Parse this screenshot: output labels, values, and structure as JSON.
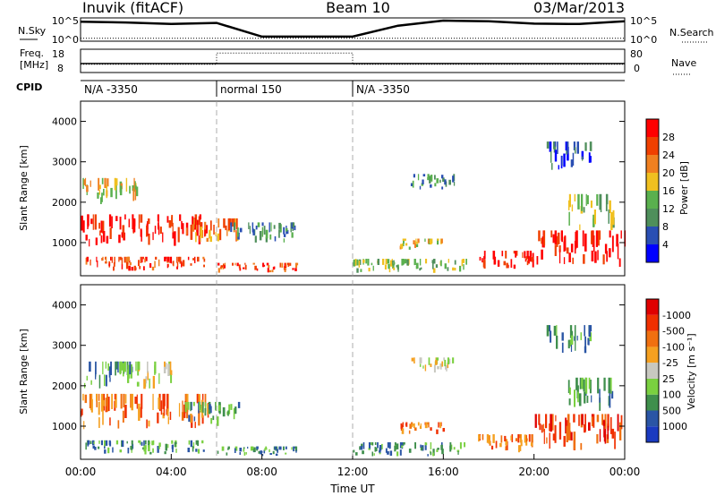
{
  "header": {
    "station": "Inuvik (fitACF)",
    "beam": "Beam 10",
    "date": "03/Mar/2013"
  },
  "colors": {
    "power": [
      "#0000ff",
      "#2a4fb3",
      "#4f8f5b",
      "#5ab04e",
      "#f0c020",
      "#f08020",
      "#f04000",
      "#ff0000"
    ],
    "velocity": [
      "#e00000",
      "#f03000",
      "#f07010",
      "#f5a020",
      "#c8c8c0",
      "#7ad040",
      "#3f8f4c",
      "#2a55a5",
      "#1a3ac0"
    ]
  },
  "chart_data": [
    {
      "type": "line",
      "panel": "noise",
      "left_label": "N.Sky",
      "right_label": "N.Search",
      "left_ticks": [
        "10^5",
        "10^0"
      ],
      "right_ticks": [
        "10^5",
        "10^0"
      ],
      "x": [
        0,
        2,
        4,
        6,
        8,
        10,
        12,
        14,
        16,
        18,
        20,
        22,
        24
      ],
      "series": [
        {
          "name": "N.Sky",
          "values": [
            30000,
            20000,
            8000,
            15000,
            5,
            5,
            5,
            3000,
            60000,
            40000,
            10000,
            8000,
            40000
          ]
        },
        {
          "name": "N.Search",
          "values": [
            2,
            2,
            2,
            2,
            2,
            2,
            2,
            2,
            2,
            2,
            2,
            2,
            2
          ]
        }
      ]
    },
    {
      "type": "line",
      "panel": "frequency",
      "left_label_1": "Freq.",
      "left_label_2": "[MHz]",
      "right_label": "Nave",
      "left_ticks": [
        "18",
        "8"
      ],
      "right_ticks": [
        "80",
        "0"
      ],
      "x": [
        0,
        6,
        6,
        12,
        12,
        24
      ],
      "series": [
        {
          "name": "Freq.",
          "values": [
            11.5,
            11.5,
            11.5,
            11.5,
            11.5,
            11.5
          ]
        },
        {
          "name": "Nave",
          "values": [
            25,
            25,
            75,
            75,
            25,
            25
          ]
        }
      ]
    },
    {
      "type": "table",
      "panel": "cpid",
      "label": "CPID",
      "segments": [
        {
          "start": 0,
          "end": 6,
          "name": "N/A -3350"
        },
        {
          "start": 6,
          "end": 12,
          "name": "normal 150"
        },
        {
          "start": 12,
          "end": 24,
          "name": "N/A -3350"
        }
      ]
    },
    {
      "type": "heatmap",
      "panel": "power",
      "ylabel": "Slant Range [km]",
      "xlabel": "",
      "xlim": [
        0,
        24
      ],
      "ylim": [
        180,
        4500
      ],
      "yticks": [
        "1000",
        "2000",
        "3000",
        "4000"
      ],
      "colorbar_label": "Power [dB]",
      "colorbar_ticks": [
        "4",
        "8",
        "12",
        "16",
        "20",
        "24",
        "28"
      ],
      "regions": [
        {
          "t0": 0.0,
          "t1": 5.6,
          "r0": 900,
          "r1": 1700,
          "level": 28
        },
        {
          "t0": 0.0,
          "t1": 2.5,
          "r0": 1900,
          "r1": 2600,
          "level": 16
        },
        {
          "t0": 0.2,
          "t1": 5.5,
          "r0": 300,
          "r1": 650,
          "level": 24
        },
        {
          "t0": 4.5,
          "t1": 7.0,
          "r0": 1000,
          "r1": 1600,
          "level": 20
        },
        {
          "t0": 6.0,
          "t1": 9.5,
          "r0": 250,
          "r1": 500,
          "level": 24
        },
        {
          "t0": 6.5,
          "t1": 9.5,
          "r0": 1000,
          "r1": 1500,
          "level": 8
        },
        {
          "t0": 12.0,
          "t1": 17.0,
          "r0": 250,
          "r1": 600,
          "level": 12
        },
        {
          "t0": 14.5,
          "t1": 16.5,
          "r0": 2300,
          "r1": 2700,
          "level": 8
        },
        {
          "t0": 14.0,
          "t1": 16.0,
          "r0": 800,
          "r1": 1100,
          "level": 16
        },
        {
          "t0": 17.5,
          "t1": 20.0,
          "r0": 350,
          "r1": 800,
          "level": 28
        },
        {
          "t0": 20.0,
          "t1": 24.0,
          "r0": 400,
          "r1": 1300,
          "level": 28
        },
        {
          "t0": 21.5,
          "t1": 23.5,
          "r0": 1300,
          "r1": 2200,
          "level": 12
        },
        {
          "t0": 20.5,
          "t1": 22.5,
          "r0": 2800,
          "r1": 3500,
          "level": 4
        }
      ]
    },
    {
      "type": "heatmap",
      "panel": "velocity",
      "ylabel": "Slant Range [km]",
      "xlabel": "Time UT",
      "xlim": [
        0,
        24
      ],
      "ylim": [
        180,
        4500
      ],
      "yticks": [
        "1000",
        "2000",
        "3000",
        "4000"
      ],
      "xticks": [
        "00:00",
        "04:00",
        "08:00",
        "12:00",
        "16:00",
        "20:00",
        "00:00"
      ],
      "colorbar_label": "Velocity [m s⁻¹]",
      "colorbar_ticks": [
        "1000",
        "500",
        "100",
        "25",
        "-25",
        "-100",
        "-500",
        "-1000"
      ],
      "regions": [
        {
          "t0": 0.0,
          "t1": 5.6,
          "r0": 900,
          "r1": 1800,
          "level": -100
        },
        {
          "t0": 0.0,
          "t1": 2.5,
          "r0": 1900,
          "r1": 2600,
          "level": 100
        },
        {
          "t0": 2.5,
          "t1": 4.0,
          "r0": 1900,
          "r1": 2600,
          "level": 0
        },
        {
          "t0": 0.2,
          "t1": 5.5,
          "r0": 300,
          "r1": 650,
          "level": 100
        },
        {
          "t0": 4.5,
          "t1": 7.0,
          "r0": 1000,
          "r1": 1600,
          "level": 100
        },
        {
          "t0": 6.0,
          "t1": 9.5,
          "r0": 250,
          "r1": 500,
          "level": 100
        },
        {
          "t0": 12.0,
          "t1": 17.0,
          "r0": 250,
          "r1": 600,
          "level": 100
        },
        {
          "t0": 14.5,
          "t1": 16.5,
          "r0": 2300,
          "r1": 2700,
          "level": 0
        },
        {
          "t0": 14.0,
          "t1": 16.0,
          "r0": 800,
          "r1": 1100,
          "level": -100
        },
        {
          "t0": 17.5,
          "t1": 20.0,
          "r0": 350,
          "r1": 800,
          "level": -100
        },
        {
          "t0": 20.0,
          "t1": 24.0,
          "r0": 400,
          "r1": 1300,
          "level": -500
        },
        {
          "t0": 21.5,
          "t1": 23.5,
          "r0": 1300,
          "r1": 2200,
          "level": 100
        },
        {
          "t0": 20.5,
          "t1": 22.5,
          "r0": 2800,
          "r1": 3500,
          "level": 100
        }
      ]
    }
  ]
}
